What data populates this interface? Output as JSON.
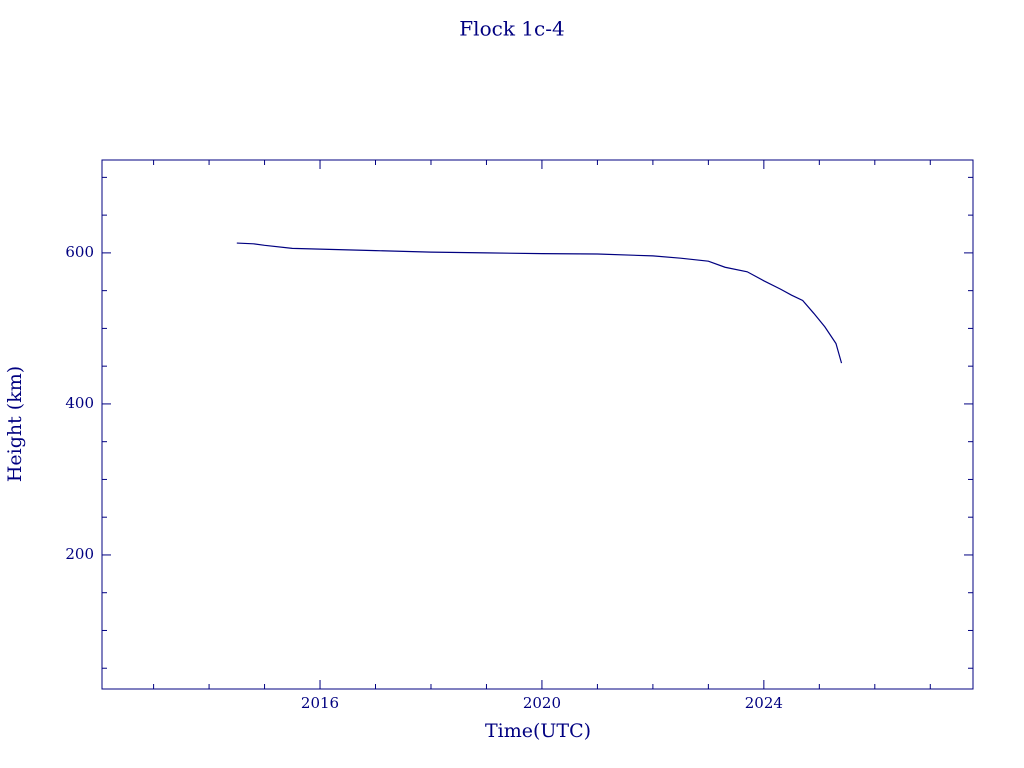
{
  "chart_data": {
    "type": "line",
    "title": "Flock 1c-4",
    "xlabel": "Time(UTC)",
    "ylabel": "Height (km)",
    "x": [
      2014.5,
      2014.8,
      2015.0,
      2015.5,
      2016.0,
      2017.0,
      2018.0,
      2019.0,
      2020.0,
      2021.0,
      2022.0,
      2022.5,
      2023.0,
      2023.3,
      2023.7,
      2024.0,
      2024.3,
      2024.5,
      2024.7,
      2024.9,
      2025.1,
      2025.3,
      2025.4
    ],
    "series": [
      {
        "name": "Flock 1c-4",
        "color": "#000080",
        "values": [
          613,
          612,
          610,
          606,
          605,
          603,
          601,
          600,
          599,
          598.5,
          596,
          593,
          589,
          581,
          575,
          563,
          552,
          544,
          537,
          520,
          502,
          480,
          454
        ]
      }
    ],
    "xlim": [
      2012.07,
      2027.77
    ],
    "xticks": [
      2016,
      2020,
      2024
    ],
    "xminorticks": [
      2013,
      2014,
      2015,
      2017,
      2018,
      2019,
      2021,
      2022,
      2023,
      2025,
      2026,
      2027
    ],
    "ylim": [
      22.5,
      723
    ],
    "yticks": [
      200,
      400,
      600
    ],
    "yminorticks": [
      50,
      100,
      150,
      250,
      300,
      350,
      450,
      500,
      550,
      650,
      700
    ],
    "grid": false
  }
}
